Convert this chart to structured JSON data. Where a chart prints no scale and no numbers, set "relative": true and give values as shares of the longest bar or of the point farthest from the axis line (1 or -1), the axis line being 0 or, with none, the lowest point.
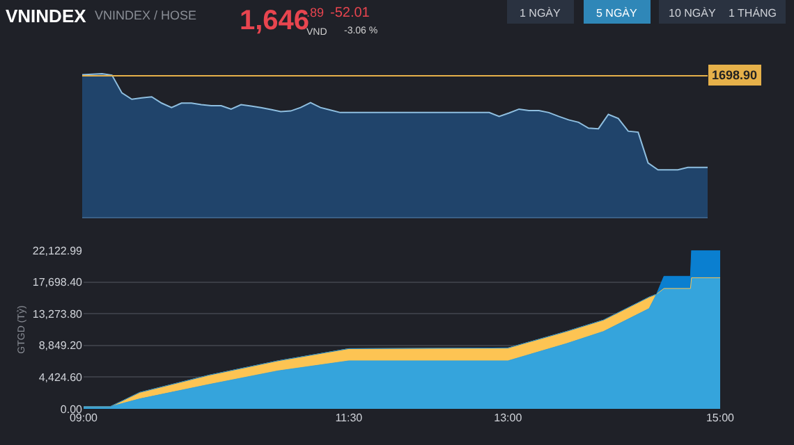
{
  "chart_data": [
    {
      "type": "area",
      "title": "VNINDEX",
      "subtitle": "VNINDEX / HOSE",
      "annotations": [
        "1,646",
        ".89",
        "VND",
        "-52.01",
        "-3.06 %",
        "1 NGÀY",
        "5 NGÀY",
        "10 NGÀY",
        "1 THÁNG",
        "1698.90"
      ],
      "relative": true,
      "tick_labels": false,
      "grid": false,
      "categories": [
        null,
        null,
        null,
        null,
        null,
        null,
        null,
        null,
        null,
        null,
        null,
        null,
        null,
        null,
        null,
        null,
        null,
        null,
        null,
        null,
        null,
        null,
        null,
        null,
        null,
        null,
        null,
        null,
        null,
        null,
        null,
        null,
        null,
        null,
        null,
        null,
        null,
        null,
        null,
        null,
        null,
        null,
        null,
        null,
        null,
        null,
        null,
        null,
        null,
        null,
        null,
        null,
        null,
        null,
        null,
        null,
        null,
        null,
        null,
        null,
        null,
        null,
        null,
        null
      ],
      "series": [
        {
          "color": "#8fbfe0",
          "values": [
            0.993,
            0.997,
            1,
            0.99,
            0.866,
            0.822,
            0.832,
            0.839,
            0.795,
            0.764,
            0.795,
            0.795,
            0.784,
            0.777,
            0.777,
            0.753,
            0.784,
            0.774,
            0.764,
            0.75,
            0.736,
            0.74,
            0.764,
            0.798,
            0.764,
            0.747,
            0.729,
            0.729,
            0.729,
            0.729,
            0.729,
            0.729,
            0.729,
            0.729,
            0.729,
            0.729,
            0.729,
            0.729,
            0.729,
            0.729,
            0.729,
            0.729,
            0.702,
            0.726,
            0.753,
            0.743,
            0.743,
            0.729,
            0.702,
            0.678,
            0.661,
            0.62,
            0.616,
            0.716,
            0.688,
            0.599,
            0.592,
            0.377,
            0.329,
            0.329,
            0.329,
            0.346,
            0.346,
            0.346
          ]
        }
      ],
      "ref_lines": [
        {
          "axis": "y",
          "value": 0.986,
          "color": "#e6b14a"
        }
      ]
    },
    {
      "type": "area",
      "stacked": true,
      "ylabel": "GTGD (Tỷ)",
      "grid": "y",
      "x": [
        9.0,
        9.25,
        9.53,
        10.18,
        10.83,
        11.5,
        13.0,
        13.55,
        13.9,
        14.33,
        14.4,
        14.47,
        14.72,
        14.73,
        15.0
      ],
      "xlim": [
        9,
        15
      ],
      "xticks": [
        {
          "value": 9,
          "label": "09:00"
        },
        {
          "value": 11.5,
          "label": "11:30"
        },
        {
          "value": 13,
          "label": "13:00"
        },
        {
          "value": 15,
          "label": "15:00"
        }
      ],
      "ylim": [
        0,
        22122.99
      ],
      "yticks": [
        {
          "value": 0,
          "label": "0.00"
        },
        {
          "value": 4424.6,
          "label": "4,424.60"
        },
        {
          "value": 8849.2,
          "label": "8,849.20"
        },
        {
          "value": 13273.8,
          "label": "13,273.80"
        },
        {
          "value": 17698.4,
          "label": "17,698.40"
        },
        {
          "value": 22122.99,
          "label": "22,122.99"
        }
      ],
      "series": [
        {
          "color": "#35a4dc",
          "values": [
            300,
            300,
            1400,
            3400,
            5300,
            6700,
            6700,
            9100,
            10800,
            14000,
            16000,
            16800,
            16800,
            18300,
            18300
          ]
        },
        {
          "color": "#fdc453",
          "values": [
            0,
            0,
            900,
            1300,
            1400,
            1700,
            1800,
            1700,
            1600,
            1600,
            0,
            0,
            0,
            0,
            0
          ]
        },
        {
          "color": "#0a7fd0",
          "values": [
            0,
            0,
            0,
            0,
            0,
            0,
            0,
            0,
            0,
            0,
            0,
            1700,
            1700,
            3800,
            3800
          ]
        }
      ]
    }
  ]
}
